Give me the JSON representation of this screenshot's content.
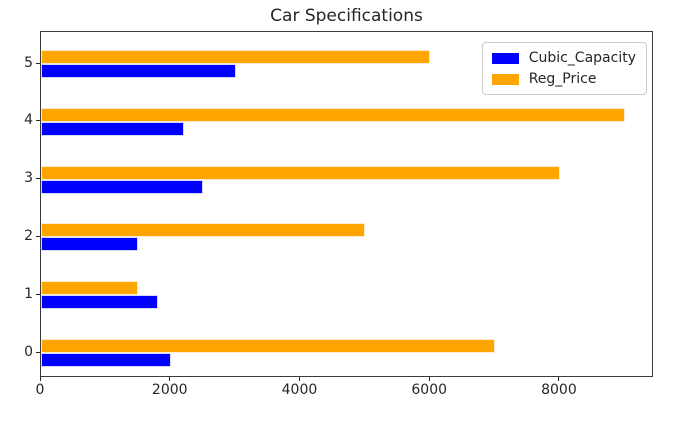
{
  "title": "Car Specifications",
  "chart_data": {
    "type": "bar",
    "orientation": "horizontal",
    "title": "Car Specifications",
    "categories": [
      "0",
      "1",
      "2",
      "3",
      "4",
      "5"
    ],
    "series": [
      {
        "name": "Cubic_Capacity",
        "color": "#0000ff",
        "values": [
          2000,
          1800,
          1500,
          2500,
          2200,
          3000
        ]
      },
      {
        "name": "Reg_Price",
        "color": "#ffa500",
        "values": [
          7000,
          1500,
          5000,
          8000,
          9000,
          6000
        ]
      }
    ],
    "xlabel": "",
    "ylabel": "",
    "x_ticks": [
      0,
      2000,
      4000,
      6000,
      8000
    ],
    "xlim": [
      0,
      9450
    ],
    "grid": false,
    "legend_position": "upper right",
    "legend_labels": [
      "Cubic_Capacity",
      "Reg_Price"
    ]
  }
}
